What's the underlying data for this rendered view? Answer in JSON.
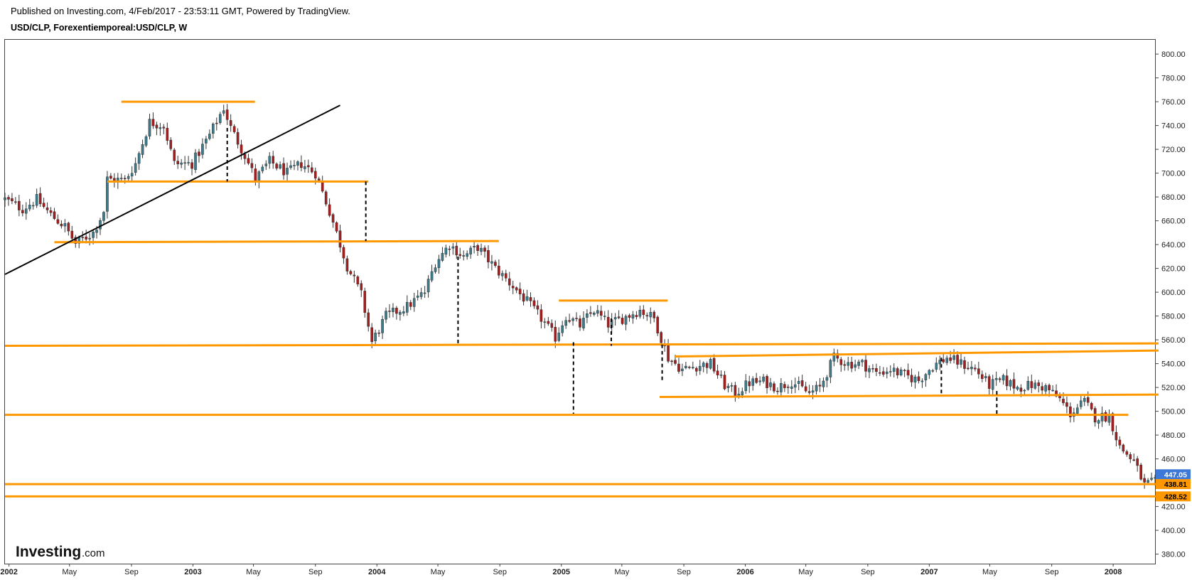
{
  "header": {
    "published": "Published on Investing.com, 4/Feb/2017 - 23:53:11 GMT, Powered by TradingView.",
    "symbol": "USD/CLP, Forexentiemporeal:USD/CLP, W"
  },
  "logo": {
    "brand": "Investing",
    "suffix": ".com"
  },
  "colors": {
    "up": "#3d7b8c",
    "down": "#a31f1f",
    "level": "#ff9800",
    "trend": "#000000",
    "last_badge": "#3b78d8",
    "level_badge": "#ff9800"
  },
  "chart_data": {
    "type": "candlestick",
    "title": "USD/CLP, Forexentiemporeal:USD/CLP, W",
    "x_range": [
      "2001-12-24",
      "2008-03-24"
    ],
    "y_range": [
      372,
      812
    ],
    "y_ticks": [
      {
        "value": 800,
        "label": "800.00"
      },
      {
        "value": 780,
        "label": "780.00"
      },
      {
        "value": 760,
        "label": "760.00"
      },
      {
        "value": 740,
        "label": "740.00"
      },
      {
        "value": 720,
        "label": "720.00"
      },
      {
        "value": 700,
        "label": "700.00"
      },
      {
        "value": 680,
        "label": "680.00"
      },
      {
        "value": 660,
        "label": "660.00"
      },
      {
        "value": 640,
        "label": "640.00"
      },
      {
        "value": 620,
        "label": "620.00"
      },
      {
        "value": 600,
        "label": "600.00"
      },
      {
        "value": 580,
        "label": "580.00"
      },
      {
        "value": 560,
        "label": "560.00"
      },
      {
        "value": 540,
        "label": "540.00"
      },
      {
        "value": 520,
        "label": "520.00"
      },
      {
        "value": 500,
        "label": "500.00"
      },
      {
        "value": 480,
        "label": "480.00"
      },
      {
        "value": 460,
        "label": "460.00"
      },
      {
        "value": 440,
        "label": "440.00"
      },
      {
        "value": 420,
        "label": "420.00"
      },
      {
        "value": 400,
        "label": "400.00"
      },
      {
        "value": 380,
        "label": "380.00"
      }
    ],
    "x_ticks": [
      {
        "date": "2002-01-01",
        "label": "2002",
        "bold": true
      },
      {
        "date": "2002-05-01",
        "label": "May",
        "bold": false
      },
      {
        "date": "2002-09-01",
        "label": "Sep",
        "bold": false
      },
      {
        "date": "2003-01-01",
        "label": "2003",
        "bold": true
      },
      {
        "date": "2003-05-01",
        "label": "May",
        "bold": false
      },
      {
        "date": "2003-09-01",
        "label": "Sep",
        "bold": false
      },
      {
        "date": "2004-01-01",
        "label": "2004",
        "bold": true
      },
      {
        "date": "2004-05-01",
        "label": "May",
        "bold": false
      },
      {
        "date": "2004-09-01",
        "label": "Sep",
        "bold": false
      },
      {
        "date": "2005-01-01",
        "label": "2005",
        "bold": true
      },
      {
        "date": "2005-05-01",
        "label": "May",
        "bold": false
      },
      {
        "date": "2005-09-01",
        "label": "Sep",
        "bold": false
      },
      {
        "date": "2006-01-01",
        "label": "2006",
        "bold": true
      },
      {
        "date": "2006-05-01",
        "label": "May",
        "bold": false
      },
      {
        "date": "2006-09-01",
        "label": "Sep",
        "bold": false
      },
      {
        "date": "2007-01-01",
        "label": "2007",
        "bold": true
      },
      {
        "date": "2007-05-01",
        "label": "May",
        "bold": false
      },
      {
        "date": "2007-09-01",
        "label": "Sep",
        "bold": false
      },
      {
        "date": "2008-01-01",
        "label": "2008",
        "bold": true
      }
    ],
    "close_path": [
      [
        "2001-12-24",
        678
      ],
      [
        "2002-01-28",
        670
      ],
      [
        "2002-02-25",
        678
      ],
      [
        "2002-03-25",
        665
      ],
      [
        "2002-04-22",
        655
      ],
      [
        "2002-05-13",
        641
      ],
      [
        "2002-06-17",
        650
      ],
      [
        "2002-07-08",
        668
      ],
      [
        "2002-07-15",
        695
      ],
      [
        "2002-08-19",
        694
      ],
      [
        "2002-09-09",
        708
      ],
      [
        "2002-10-07",
        743
      ],
      [
        "2002-11-04",
        740
      ],
      [
        "2002-11-25",
        708
      ],
      [
        "2002-12-30",
        708
      ],
      [
        "2003-02-03",
        732
      ],
      [
        "2003-03-03",
        755
      ],
      [
        "2003-03-17",
        738
      ],
      [
        "2003-04-14",
        715
      ],
      [
        "2003-05-05",
        695
      ],
      [
        "2003-06-02",
        710
      ],
      [
        "2003-07-07",
        700
      ],
      [
        "2003-08-04",
        708
      ],
      [
        "2003-09-01",
        700
      ],
      [
        "2003-09-29",
        668
      ],
      [
        "2003-11-03",
        622
      ],
      [
        "2003-12-01",
        598
      ],
      [
        "2003-12-22",
        558
      ],
      [
        "2004-01-19",
        580
      ],
      [
        "2004-03-01",
        588
      ],
      [
        "2004-04-05",
        600
      ],
      [
        "2004-04-26",
        625
      ],
      [
        "2004-05-24",
        640
      ],
      [
        "2004-06-21",
        630
      ],
      [
        "2004-07-19",
        638
      ],
      [
        "2004-08-23",
        620
      ],
      [
        "2004-09-27",
        605
      ],
      [
        "2004-10-25",
        592
      ],
      [
        "2004-11-22",
        578
      ],
      [
        "2004-12-20",
        562
      ],
      [
        "2005-01-10",
        580
      ],
      [
        "2005-02-07",
        572
      ],
      [
        "2005-03-07",
        585
      ],
      [
        "2005-04-04",
        573
      ],
      [
        "2005-05-02",
        578
      ],
      [
        "2005-06-06",
        585
      ],
      [
        "2005-07-04",
        578
      ],
      [
        "2005-08-01",
        545
      ],
      [
        "2005-08-29",
        535
      ],
      [
        "2005-09-26",
        538
      ],
      [
        "2005-10-24",
        540
      ],
      [
        "2005-11-21",
        522
      ],
      [
        "2005-12-12",
        515
      ],
      [
        "2006-01-09",
        524
      ],
      [
        "2006-02-06",
        525
      ],
      [
        "2006-03-06",
        520
      ],
      [
        "2006-04-03",
        525
      ],
      [
        "2006-05-08",
        515
      ],
      [
        "2006-05-29",
        520
      ],
      [
        "2006-06-26",
        545
      ],
      [
        "2006-07-24",
        540
      ],
      [
        "2006-08-21",
        540
      ],
      [
        "2006-09-18",
        532
      ],
      [
        "2006-10-16",
        535
      ],
      [
        "2006-11-13",
        530
      ],
      [
        "2006-12-11",
        526
      ],
      [
        "2007-01-08",
        538
      ],
      [
        "2007-02-05",
        545
      ],
      [
        "2007-03-05",
        540
      ],
      [
        "2007-04-02",
        535
      ],
      [
        "2007-04-30",
        522
      ],
      [
        "2007-05-28",
        526
      ],
      [
        "2007-06-25",
        520
      ],
      [
        "2007-07-23",
        522
      ],
      [
        "2007-08-20",
        520
      ],
      [
        "2007-09-17",
        510
      ],
      [
        "2007-10-08",
        498
      ],
      [
        "2007-11-05",
        508
      ],
      [
        "2007-11-26",
        495
      ],
      [
        "2007-12-24",
        496
      ],
      [
        "2008-01-14",
        470
      ],
      [
        "2008-02-11",
        458
      ],
      [
        "2008-03-03",
        438
      ],
      [
        "2008-03-17",
        440
      ]
    ],
    "levels": [
      {
        "x1": "2002-08-12",
        "x2": "2003-05-04",
        "y1": 760,
        "y2": 760
      },
      {
        "x1": "2002-07-15",
        "x2": "2003-12-15",
        "y1": 693,
        "y2": 693
      },
      {
        "x1": "2002-04-01",
        "x2": "2004-08-30",
        "y1": 642,
        "y2": 643
      },
      {
        "x1": "2004-12-27",
        "x2": "2005-07-31",
        "y1": 593,
        "y2": 593
      },
      {
        "x1": "2001-12-24",
        "x2": "2008-03-31",
        "y1": 555,
        "y2": 557
      },
      {
        "x1": "2005-08-15",
        "x2": "2008-03-31",
        "y1": 546,
        "y2": 551
      },
      {
        "x1": "2005-07-15",
        "x2": "2008-03-31",
        "y1": 512,
        "y2": 514
      },
      {
        "x1": "2001-12-24",
        "x2": "2008-01-31",
        "y1": 497,
        "y2": 497
      },
      {
        "x1": "2001-12-24",
        "x2": "2008-03-31",
        "y1": 438.81,
        "y2": 438.81
      },
      {
        "x1": "2001-12-24",
        "x2": "2008-03-31",
        "y1": 428.52,
        "y2": 428.52
      }
    ],
    "trendline": {
      "x1": "2001-12-24",
      "y1": 615,
      "x2": "2003-10-20",
      "y2": 757
    },
    "projections": [
      {
        "date": "2003-03-10",
        "y1": 738,
        "y2": 693
      },
      {
        "date": "2003-12-10",
        "y1": 693,
        "y2": 643
      },
      {
        "date": "2004-06-10",
        "y1": 630,
        "y2": 557
      },
      {
        "date": "2005-01-25",
        "y1": 558,
        "y2": 498
      },
      {
        "date": "2005-04-10",
        "y1": 578,
        "y2": 555
      },
      {
        "date": "2005-07-20",
        "y1": 556,
        "y2": 524
      },
      {
        "date": "2007-01-25",
        "y1": 545,
        "y2": 515
      },
      {
        "date": "2007-05-15",
        "y1": 517,
        "y2": 497
      }
    ],
    "last_price": {
      "value": 447.05,
      "label": "447.05"
    },
    "level_labels": [
      {
        "value": 438.81,
        "label": "438.81"
      },
      {
        "value": 428.52,
        "label": "428.52"
      }
    ]
  }
}
